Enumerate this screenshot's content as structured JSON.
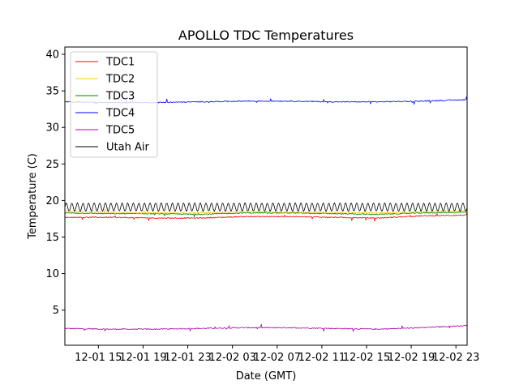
{
  "chart_data": {
    "type": "line",
    "title": "APOLLO TDC Temperatures",
    "xlabel": "Date (GMT)",
    "ylabel": "Temperature (C)",
    "x_unit": "hours since 12-01 12:00 GMT",
    "xlim": [
      0,
      36
    ],
    "ylim": [
      0.2,
      41.0
    ],
    "yticks": [
      5,
      10,
      15,
      20,
      25,
      30,
      35,
      40
    ],
    "xticks": [
      {
        "value": 3,
        "label": "12-01 15"
      },
      {
        "value": 7,
        "label": "12-01 19"
      },
      {
        "value": 11,
        "label": "12-01 23"
      },
      {
        "value": 15,
        "label": "12-02 03"
      },
      {
        "value": 19,
        "label": "12-02 07"
      },
      {
        "value": 23,
        "label": "12-02 11"
      },
      {
        "value": 27,
        "label": "12-02 15"
      },
      {
        "value": 31,
        "label": "12-02 19"
      },
      {
        "value": 35,
        "label": "12-02 23"
      }
    ],
    "legend_position": "top-left",
    "grid": false,
    "series": [
      {
        "name": "TDC1",
        "color": "#ff0000",
        "x": [
          0,
          4,
          8,
          12,
          16,
          20,
          24,
          28,
          32,
          36
        ],
        "y": [
          17.7,
          17.7,
          17.6,
          17.6,
          17.8,
          17.8,
          17.7,
          17.6,
          17.9,
          18.0
        ]
      },
      {
        "name": "TDC2",
        "color": "#ffcc00",
        "x": [
          0,
          4,
          8,
          12,
          16,
          20,
          24,
          28,
          32,
          36
        ],
        "y": [
          18.5,
          18.4,
          18.3,
          18.3,
          18.5,
          18.4,
          18.4,
          18.3,
          18.5,
          18.6
        ]
      },
      {
        "name": "TDC3",
        "color": "#008000",
        "x": [
          0,
          4,
          8,
          12,
          16,
          20,
          24,
          28,
          32,
          36
        ],
        "y": [
          18.3,
          18.2,
          18.2,
          18.1,
          18.3,
          18.3,
          18.2,
          18.1,
          18.3,
          18.4
        ]
      },
      {
        "name": "TDC4",
        "color": "#0000ff",
        "x": [
          0,
          4,
          8,
          12,
          16,
          20,
          24,
          28,
          32,
          36
        ],
        "y": [
          33.5,
          33.4,
          33.4,
          33.5,
          33.6,
          33.6,
          33.5,
          33.5,
          33.6,
          33.8
        ]
      },
      {
        "name": "TDC5",
        "color": "#aa00aa",
        "x": [
          0,
          4,
          8,
          12,
          16,
          20,
          24,
          28,
          32,
          36
        ],
        "y": [
          2.5,
          2.4,
          2.4,
          2.5,
          2.6,
          2.6,
          2.5,
          2.4,
          2.6,
          2.9
        ]
      },
      {
        "name": "Utah Air",
        "color": "#000000",
        "oscillation": {
          "mean": 19.1,
          "amplitude": 0.55,
          "period_hours": 0.5
        },
        "x": [
          0,
          36
        ],
        "y": [
          19.1,
          19.1
        ]
      }
    ]
  }
}
